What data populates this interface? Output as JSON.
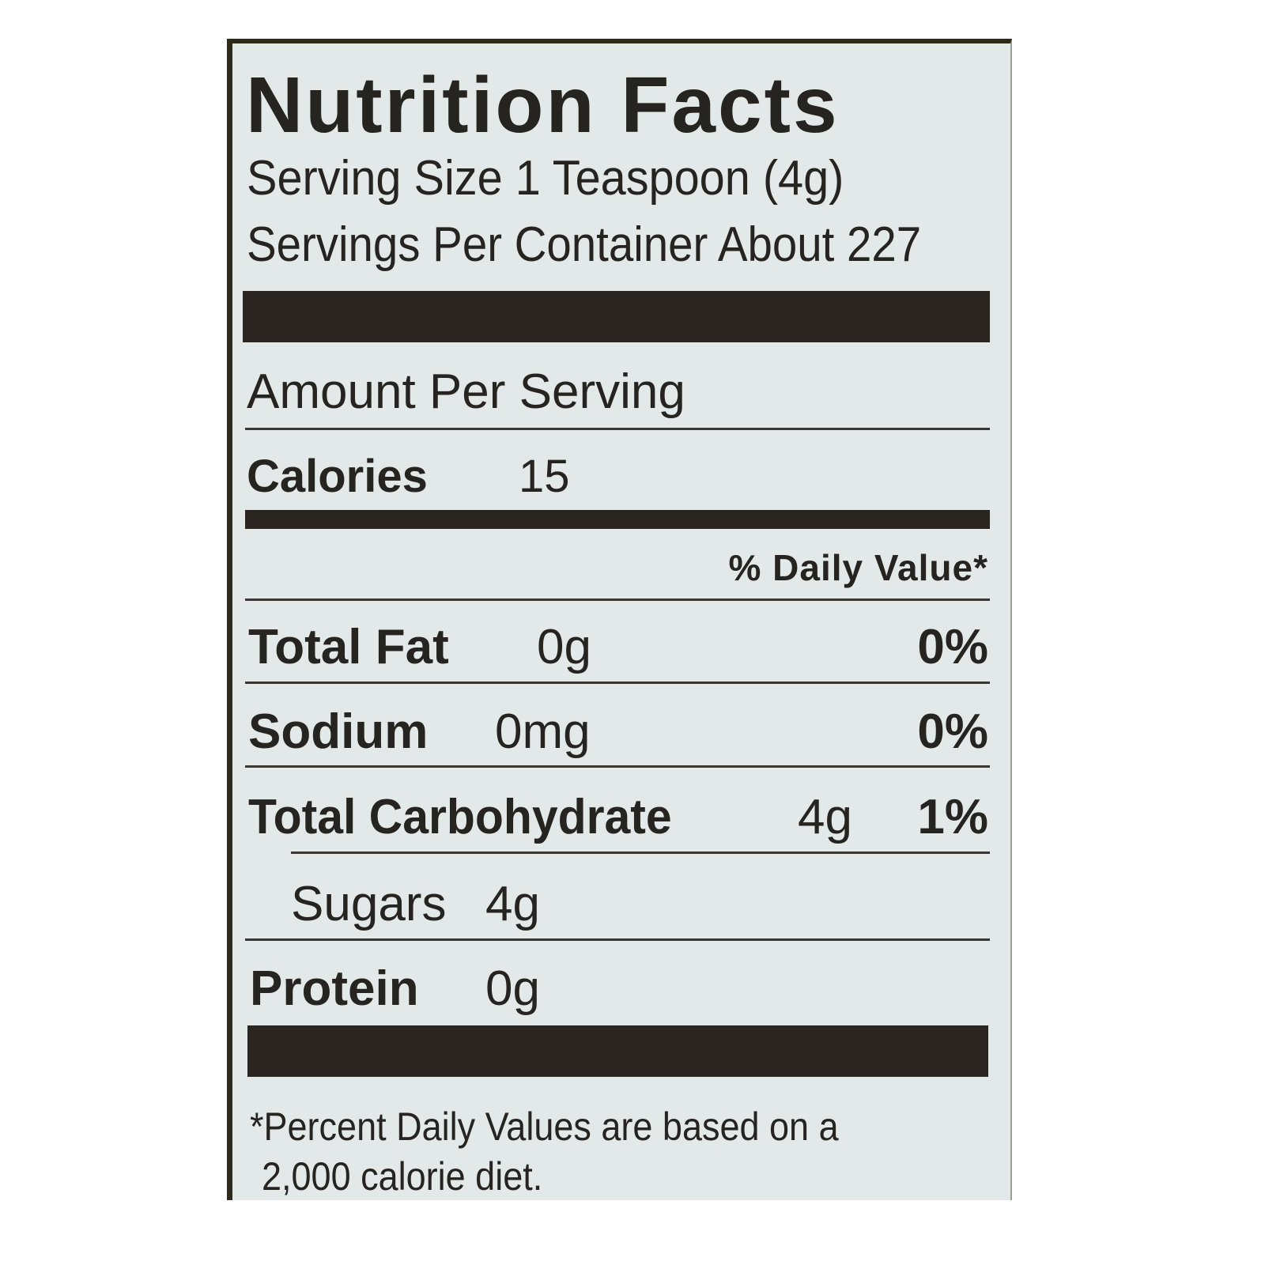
{
  "label": {
    "title": "Nutrition Facts",
    "serving_size": "Serving Size 1 Teaspoon (4g)",
    "servings_per_container": "Servings Per Container About 227",
    "amount_per_serving": "Amount Per Serving",
    "calories": {
      "label": "Calories",
      "value": "15"
    },
    "daily_value_header": "% Daily Value*",
    "nutrients": [
      {
        "label": "Total Fat",
        "amount": "0g",
        "dv": "0%"
      },
      {
        "label": "Sodium",
        "amount": "0mg",
        "dv": "0%"
      },
      {
        "label": "Total Carbohydrate",
        "amount": "4g",
        "dv": "1%"
      },
      {
        "label": "Sugars",
        "amount": "4g",
        "dv": ""
      },
      {
        "label": "Protein",
        "amount": "0g",
        "dv": ""
      }
    ],
    "footnote_line1": "*Percent Daily Values are based on a",
    "footnote_line2": "2,000 calorie diet."
  },
  "colors": {
    "background": "#e3e9e9",
    "ink": "#262420",
    "border": "#2e2a18"
  }
}
